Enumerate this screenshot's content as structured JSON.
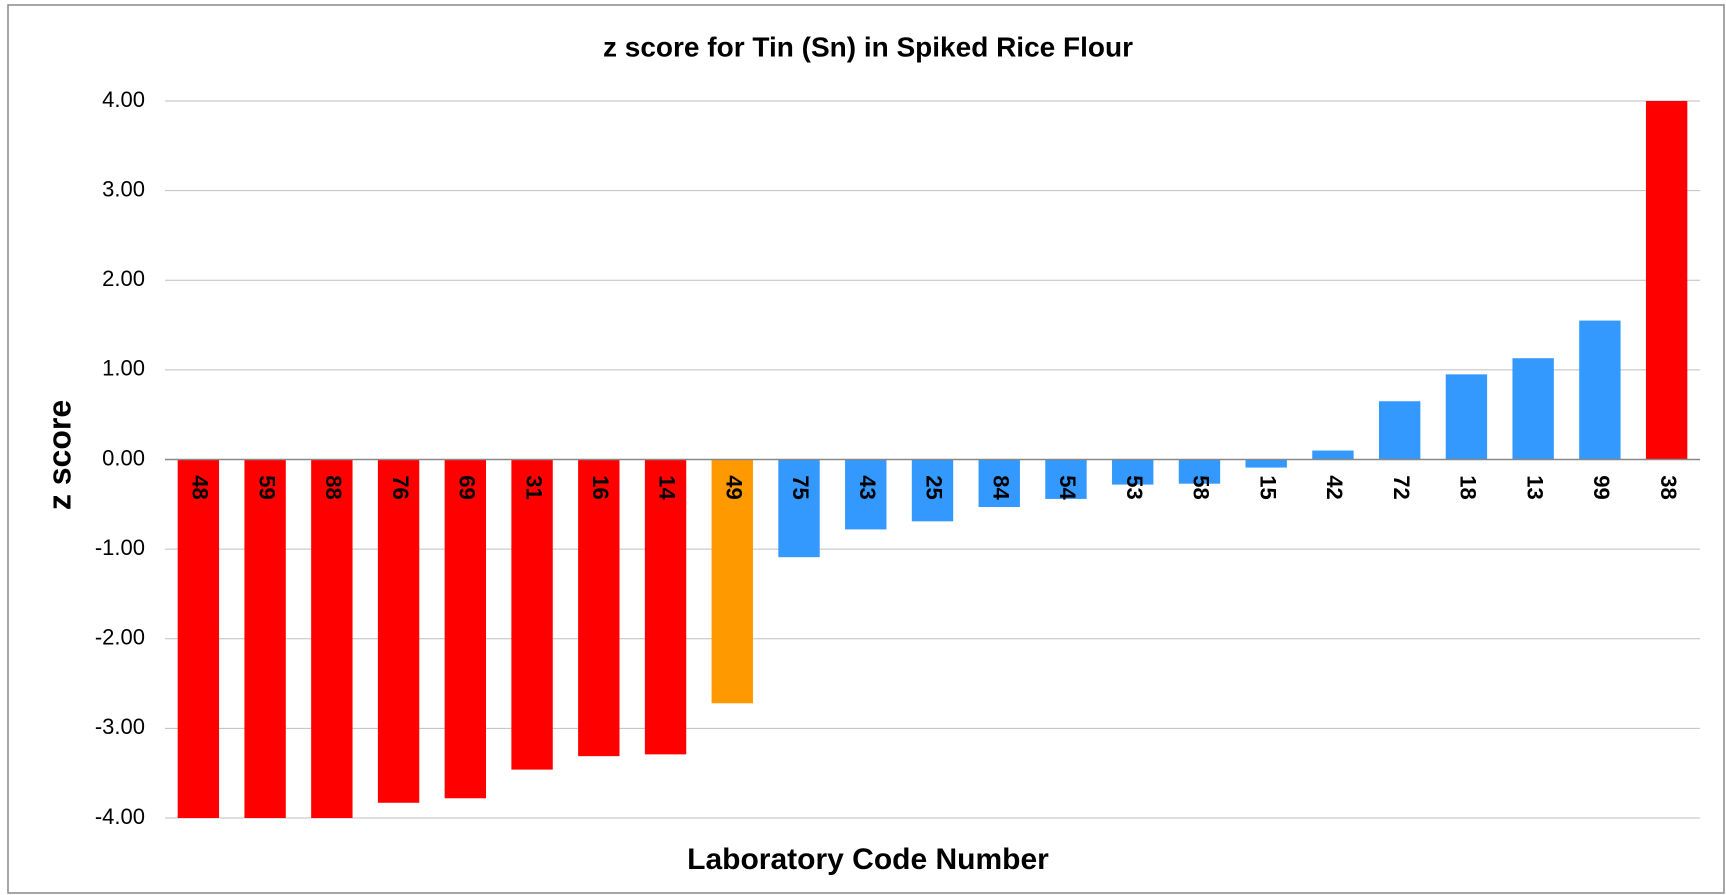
{
  "chart_data": {
    "type": "bar",
    "title": "z score for Tin (Sn) in Spiked Rice Flour",
    "x_label": "Laboratory Code Number",
    "y_label": "z score",
    "categories": [
      "48",
      "59",
      "88",
      "76",
      "69",
      "31",
      "16",
      "14",
      "49",
      "75",
      "43",
      "25",
      "84",
      "54",
      "53",
      "58",
      "15",
      "42",
      "72",
      "18",
      "13",
      "99",
      "38"
    ],
    "values": [
      -4.0,
      -4.0,
      -4.0,
      -3.83,
      -3.78,
      -3.46,
      -3.31,
      -3.29,
      -2.72,
      -1.09,
      -0.78,
      -0.69,
      -0.53,
      -0.44,
      -0.28,
      -0.27,
      -0.09,
      0.1,
      0.65,
      0.95,
      1.13,
      1.55,
      4.0
    ],
    "colors": [
      "#ff0000",
      "#ff0000",
      "#ff0000",
      "#ff0000",
      "#ff0000",
      "#ff0000",
      "#ff0000",
      "#ff0000",
      "#ff9900",
      "#3399ff",
      "#3399ff",
      "#3399ff",
      "#3399ff",
      "#3399ff",
      "#3399ff",
      "#3399ff",
      "#3399ff",
      "#3399ff",
      "#3399ff",
      "#3399ff",
      "#3399ff",
      "#3399ff",
      "#ff0000"
    ],
    "ylim": [
      -4,
      4
    ],
    "yticks": [
      {
        "value": -4,
        "label": "-4.00"
      },
      {
        "value": -3,
        "label": "-3.00"
      },
      {
        "value": -2,
        "label": "-2.00"
      },
      {
        "value": -1,
        "label": "-1.00"
      },
      {
        "value": 0,
        "label": "0.00"
      },
      {
        "value": 1,
        "label": "1.00"
      },
      {
        "value": 2,
        "label": "2.00"
      },
      {
        "value": 3,
        "label": "3.00"
      },
      {
        "value": 4,
        "label": "4.00"
      }
    ],
    "grid": true
  }
}
